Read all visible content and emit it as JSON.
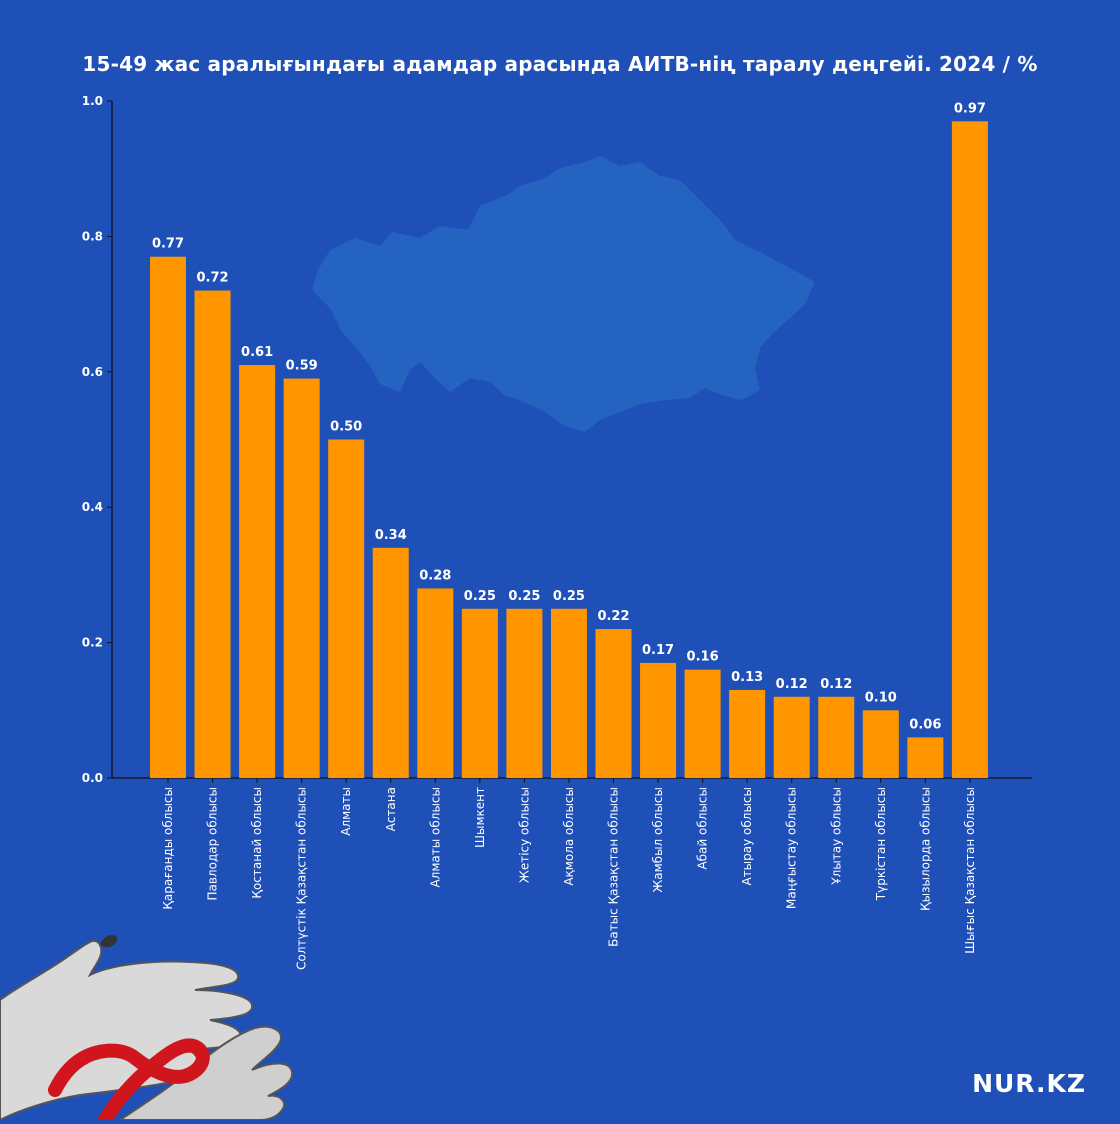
{
  "brand": "NUR.KZ",
  "colors": {
    "background": "#1f50b8",
    "map": "#2463c0",
    "bar": "#ff9600",
    "text": "#ffffff",
    "ribbon": "#d0161c",
    "hands": "#d9d9d9"
  },
  "chart_data": {
    "type": "bar",
    "title": "15-49 жас аралығындағы адамдар арасында АИТВ-нің таралу деңгейі. 2024 / %",
    "xlabel": "",
    "ylabel": "",
    "ylim": [
      0,
      1.0
    ],
    "yticks": [
      "0.0",
      "0.2",
      "0.4",
      "0.6",
      "0.8",
      "1.0"
    ],
    "grid": false,
    "categories": [
      "Қарағанды облысы",
      "Павлодар облысы",
      "Қостанай облысы",
      "Солтүстік Қазақстан облысы",
      "Алматы",
      "Астана",
      "Алматы облысы",
      "Шымкент",
      "Жетісу облысы",
      "Ақмола облысы",
      "Батыс Қазақстан облысы",
      "Жамбыл облысы",
      "Абай облысы",
      "Атырау облысы",
      "Маңғыстау облысы",
      "Ұлытау облысы",
      "Түркістан облысы",
      "Қызылорда облысы",
      "Шығыс Қазақстан облысы"
    ],
    "values": [
      0.77,
      0.72,
      0.61,
      0.59,
      0.5,
      0.34,
      0.28,
      0.25,
      0.25,
      0.25,
      0.22,
      0.17,
      0.16,
      0.13,
      0.12,
      0.12,
      0.1,
      0.06,
      0.97
    ],
    "value_labels": [
      "0.77",
      "0.72",
      "0.61",
      "0.59",
      "0.50",
      "0.34",
      "0.28",
      "0.25",
      "0.25",
      "0.25",
      "0.22",
      "0.17",
      "0.16",
      "0.13",
      "0.12",
      "0.12",
      "0.10",
      "0.06",
      "0.97"
    ]
  }
}
